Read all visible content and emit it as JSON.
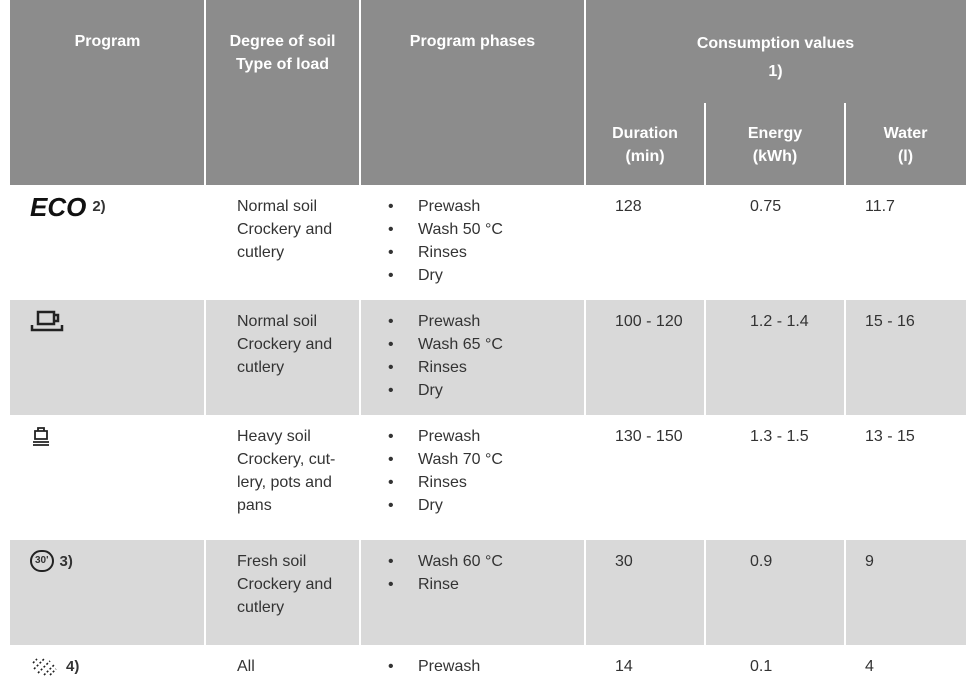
{
  "table": {
    "header": {
      "program": "Program",
      "soil": [
        "Degree of soil",
        "Type of load"
      ],
      "phases": "Program phases",
      "consumption": [
        "Consumption values",
        "1)"
      ],
      "duration": [
        "Duration",
        "(min)"
      ],
      "energy": [
        "Energy",
        "(kWh)"
      ],
      "water": [
        "Water",
        "(l)"
      ]
    },
    "rows": [
      {
        "icon_text": "ECO",
        "note": "2)",
        "soil": [
          "Normal soil",
          "Crockery and",
          "cutlery"
        ],
        "phases": [
          "Prewash",
          "Wash 50 °C",
          "Rinses",
          "Dry"
        ],
        "duration": "128",
        "energy": "0.75",
        "water": "11.7"
      },
      {
        "note": null,
        "soil": [
          "Normal soil",
          "Crockery and",
          "cutlery"
        ],
        "phases": [
          "Prewash",
          "Wash 65 °C",
          "Rinses",
          "Dry"
        ],
        "duration": "100 - 120",
        "energy": "1.2 - 1.4",
        "water": "15 - 16"
      },
      {
        "note": null,
        "soil": [
          "Heavy soil",
          "Crockery, cut-",
          "lery, pots and",
          "pans"
        ],
        "phases": [
          "Prewash",
          "Wash 70 °C",
          "Rinses",
          "Dry"
        ],
        "duration": "130 - 150",
        "energy": "1.3 - 1.5",
        "water": "13 - 15"
      },
      {
        "icon_text": "30'",
        "note": "3)",
        "soil": [
          "Fresh soil",
          "Crockery and",
          "cutlery"
        ],
        "phases": [
          "Wash 60 °C",
          "Rinse"
        ],
        "duration": "30",
        "energy": "0.9",
        "water": "9"
      },
      {
        "note": "4)",
        "soil": [
          "All"
        ],
        "phases": [
          "Prewash"
        ],
        "duration": "14",
        "energy": "0.1",
        "water": "4"
      }
    ]
  }
}
